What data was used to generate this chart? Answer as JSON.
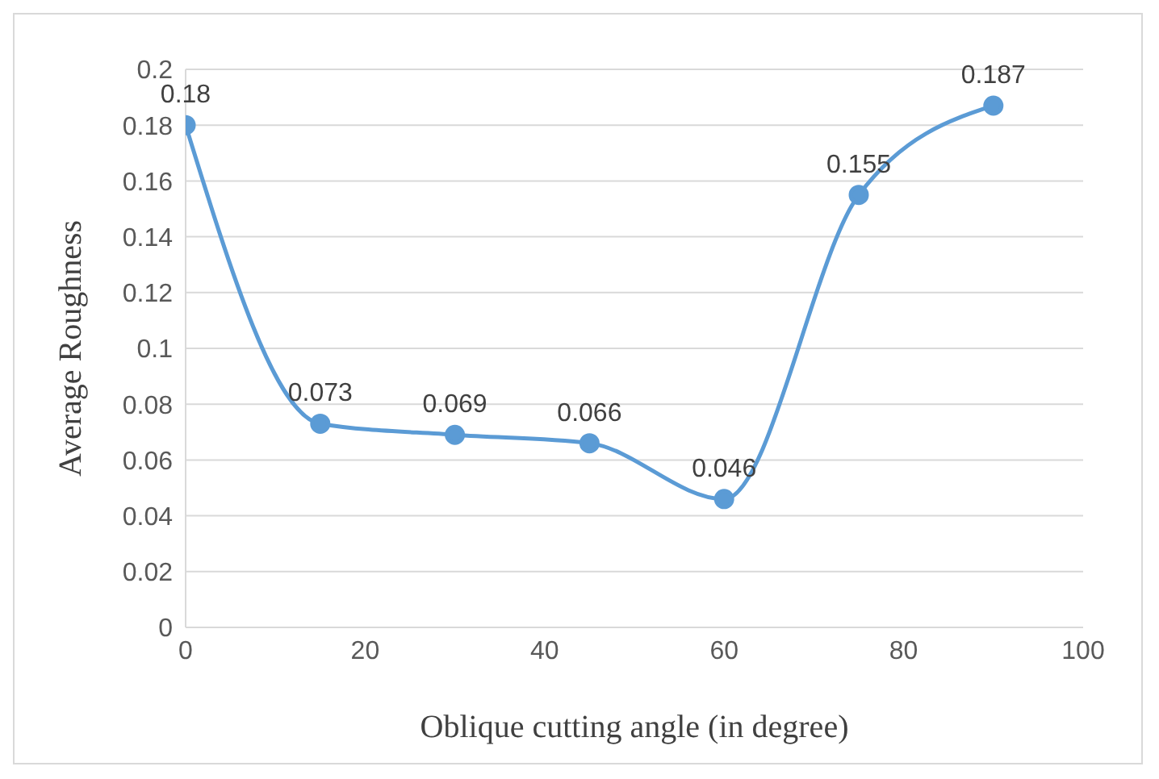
{
  "chart_data": {
    "type": "line",
    "xlabel": "Oblique cutting angle (in degree)",
    "ylabel": "Average Roughness",
    "x": [
      0,
      15,
      30,
      45,
      60,
      75,
      90
    ],
    "series": [
      {
        "color": "#5b9bd5",
        "values": [
          0.18,
          0.073,
          0.069,
          0.066,
          0.046,
          0.155,
          0.187
        ]
      }
    ],
    "xlim": [
      0,
      100
    ],
    "xticks": [
      0,
      20,
      40,
      60,
      80,
      100
    ],
    "ylim": [
      0,
      0.2
    ],
    "yticks": [
      0,
      0.02,
      0.04,
      0.06,
      0.08,
      0.1,
      0.12,
      0.14,
      0.16,
      0.18,
      0.2
    ],
    "grid": "y",
    "legend": false,
    "marker": "circle",
    "line_style": "solid",
    "data_labels": true
  }
}
